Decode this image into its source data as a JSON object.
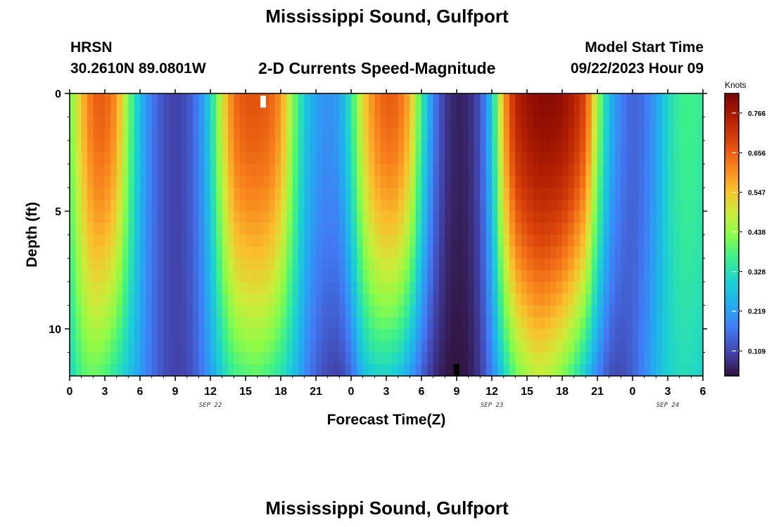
{
  "header": {
    "title": "Mississippi Sound, Gulfport",
    "station_id": "HRSN",
    "coordinates": "30.2610N  89.0801W",
    "subtitle": "2-D Currents Speed-Magnitude",
    "model_start_label": "Model Start Time",
    "model_start_value": "09/22/2023 Hour 09"
  },
  "footer": {
    "title": "Mississippi Sound, Gulfport"
  },
  "chart_data": {
    "type": "heatmap",
    "title": "2-D Currents Speed-Magnitude",
    "xlabel": "Forecast Time(Z)",
    "ylabel": "Depth (ft)",
    "x_unit": "hours since 2023-09-22 00Z",
    "xlim": [
      0,
      54
    ],
    "ylim": [
      12,
      0
    ],
    "x_ticks": [
      0,
      3,
      6,
      9,
      12,
      15,
      18,
      21,
      24,
      27,
      30,
      33,
      36,
      39,
      42,
      45,
      48,
      51,
      54
    ],
    "x_tick_labels": [
      "0",
      "3",
      "6",
      "9",
      "12",
      "15",
      "18",
      "21",
      "0",
      "3",
      "6",
      "9",
      "12",
      "15",
      "18",
      "21",
      "0",
      "3",
      "6"
    ],
    "date_labels": [
      {
        "text": "SEP 22",
        "hour": 12
      },
      {
        "text": "SEP 23",
        "hour": 36
      },
      {
        "text": "SEP 24",
        "hour": 51
      }
    ],
    "y_ticks": [
      0,
      5,
      10
    ],
    "y_tick_labels": [
      "0",
      "5",
      "10"
    ],
    "colorbar": {
      "label": "Knots",
      "range": [
        0.04,
        0.82
      ],
      "ticks": [
        0.766,
        0.656,
        0.547,
        0.438,
        0.328,
        0.219,
        0.109
      ],
      "tick_labels": [
        "0.766",
        "0.656",
        "0.547",
        "0.438",
        "0.328",
        "0.219",
        "0.109"
      ]
    },
    "speed_profile_by_hour": {
      "note": "approx. speed (knots) near surface (~1 ft) and near bottom (~11.5 ft)",
      "hours": [
        0,
        1,
        2,
        3,
        4,
        5,
        6,
        7,
        8,
        9,
        10,
        11,
        12,
        13,
        14,
        15,
        16,
        17,
        18,
        19,
        20,
        21,
        22,
        23,
        24,
        25,
        26,
        27,
        28,
        29,
        30,
        31,
        32,
        33,
        34,
        35,
        36,
        37,
        38,
        39,
        40,
        41,
        42,
        43,
        44,
        45,
        46,
        47,
        48,
        49,
        50,
        51,
        52,
        53,
        54
      ],
      "surface": [
        0.4,
        0.55,
        0.65,
        0.66,
        0.6,
        0.42,
        0.26,
        0.17,
        0.12,
        0.1,
        0.12,
        0.18,
        0.3,
        0.5,
        0.64,
        0.67,
        0.67,
        0.66,
        0.6,
        0.43,
        0.29,
        0.22,
        0.2,
        0.22,
        0.34,
        0.52,
        0.62,
        0.66,
        0.65,
        0.57,
        0.36,
        0.18,
        0.09,
        0.06,
        0.07,
        0.12,
        0.28,
        0.58,
        0.74,
        0.78,
        0.8,
        0.8,
        0.79,
        0.75,
        0.68,
        0.45,
        0.26,
        0.18,
        0.14,
        0.16,
        0.22,
        0.31,
        0.36,
        0.37,
        0.35
      ],
      "bottom": [
        0.3,
        0.38,
        0.4,
        0.38,
        0.33,
        0.28,
        0.22,
        0.16,
        0.12,
        0.1,
        0.11,
        0.15,
        0.22,
        0.3,
        0.36,
        0.38,
        0.39,
        0.37,
        0.33,
        0.28,
        0.2,
        0.14,
        0.11,
        0.1,
        0.15,
        0.26,
        0.3,
        0.3,
        0.28,
        0.22,
        0.14,
        0.08,
        0.05,
        0.04,
        0.05,
        0.09,
        0.18,
        0.3,
        0.4,
        0.45,
        0.48,
        0.46,
        0.42,
        0.36,
        0.28,
        0.18,
        0.12,
        0.11,
        0.14,
        0.19,
        0.25,
        0.3,
        0.32,
        0.32,
        0.3
      ]
    },
    "missing_cells": [
      {
        "hour": 16.5,
        "depth_ft": 0.5,
        "note": "white gap"
      },
      {
        "hour": 33,
        "depth_ft": 11.7,
        "note": "black cell"
      }
    ]
  }
}
